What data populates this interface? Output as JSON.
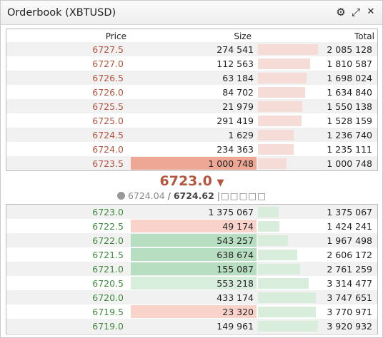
{
  "window": {
    "title": "Orderbook (XBTUSD)"
  },
  "titlebar_icons": [
    {
      "name": "settings-gear-icon",
      "glyph": "⚙"
    },
    {
      "name": "expand-icon",
      "glyph": "⤢"
    },
    {
      "name": "close-icon",
      "glyph": "✕"
    }
  ],
  "headers": {
    "price": "Price",
    "size": "Size",
    "total": "Total"
  },
  "colors": {
    "ask_text": "#b4553d",
    "bid_text": "#3f8a3c",
    "ask_bar": "#f6dcd6",
    "bid_bar": "#d8eddb",
    "ask_highlight": "#eea795",
    "ask_flash": "#f9d3ca",
    "bid_flash": "#b8dec1"
  },
  "asks": [
    {
      "price": "6727.5",
      "size": "274 541",
      "total": "2 085 128",
      "depth": 1.0,
      "alt": true,
      "size_bg": ""
    },
    {
      "price": "6727.0",
      "size": "112 563",
      "total": "1 810 587",
      "depth": 0.87,
      "alt": false,
      "size_bg": ""
    },
    {
      "price": "6726.5",
      "size": "63 184",
      "total": "1 698 024",
      "depth": 0.81,
      "alt": true,
      "size_bg": ""
    },
    {
      "price": "6726.0",
      "size": "84 702",
      "total": "1 634 840",
      "depth": 0.78,
      "alt": false,
      "size_bg": ""
    },
    {
      "price": "6725.5",
      "size": "21 979",
      "total": "1 550 138",
      "depth": 0.74,
      "alt": true,
      "size_bg": ""
    },
    {
      "price": "6725.0",
      "size": "291 419",
      "total": "1 528 159",
      "depth": 0.73,
      "alt": false,
      "size_bg": ""
    },
    {
      "price": "6724.5",
      "size": "1 629",
      "total": "1 236 740",
      "depth": 0.59,
      "alt": true,
      "size_bg": ""
    },
    {
      "price": "6724.0",
      "size": "234 363",
      "total": "1 235 111",
      "depth": 0.59,
      "alt": false,
      "size_bg": ""
    },
    {
      "price": "6723.5",
      "size": "1 000 748",
      "total": "1 000 748",
      "depth": 0.48,
      "alt": true,
      "size_bg": "highlight"
    }
  ],
  "mid": {
    "last_price": "6723.0",
    "direction_arrow": "▼",
    "globe_icon": "globe-icon",
    "index_price": "6724.04",
    "separator": "/",
    "mark_price": "6724.62",
    "indicator_text": "|□□□□□"
  },
  "bids": [
    {
      "price": "6723.0",
      "size": "1 375 067",
      "total": "1 375 067",
      "depth": 0.35,
      "alt": true,
      "size_bg": ""
    },
    {
      "price": "6722.5",
      "size": "49 174",
      "total": "1 424 241",
      "depth": 0.36,
      "alt": false,
      "size_bg": "ask_flash"
    },
    {
      "price": "6722.0",
      "size": "543 257",
      "total": "1 967 498",
      "depth": 0.5,
      "alt": true,
      "size_bg": "bid_flash"
    },
    {
      "price": "6721.5",
      "size": "638 674",
      "total": "2 606 172",
      "depth": 0.66,
      "alt": false,
      "size_bg": "bid_flash"
    },
    {
      "price": "6721.0",
      "size": "155 087",
      "total": "2 761 259",
      "depth": 0.7,
      "alt": true,
      "size_bg": "bid_flash"
    },
    {
      "price": "6720.5",
      "size": "553 218",
      "total": "3 314 477",
      "depth": 0.85,
      "alt": false,
      "size_bg": "bid_light"
    },
    {
      "price": "6720.0",
      "size": "433 174",
      "total": "3 747 651",
      "depth": 0.96,
      "alt": true,
      "size_bg": ""
    },
    {
      "price": "6719.5",
      "size": "23 320",
      "total": "3 770 971",
      "depth": 0.96,
      "alt": false,
      "size_bg": "ask_flash"
    },
    {
      "price": "6719.0",
      "size": "149 961",
      "total": "3 920 932",
      "depth": 1.0,
      "alt": true,
      "size_bg": ""
    }
  ]
}
